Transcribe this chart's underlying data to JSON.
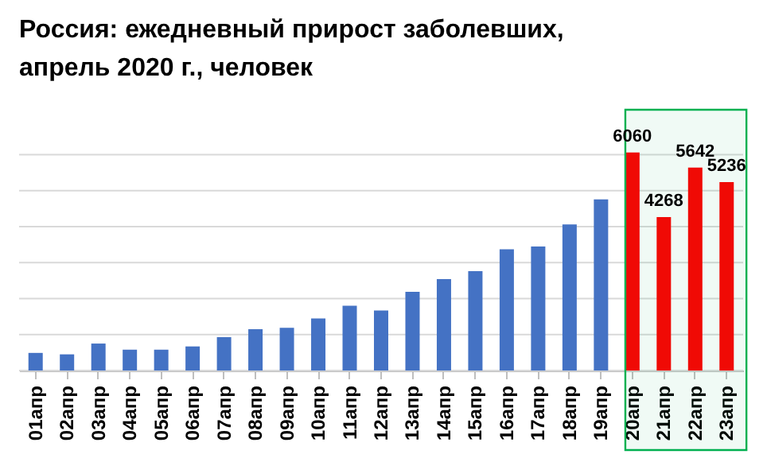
{
  "chart_data": {
    "type": "bar",
    "title": "Россия: ежедневный прирост заболевших,\nапрель 2020 г., человек",
    "categories": [
      "01апр",
      "02апр",
      "03апр",
      "04апр",
      "05апр",
      "06апр",
      "07апр",
      "08апр",
      "09апр",
      "10апр",
      "11апр",
      "12апр",
      "13апр",
      "14апр",
      "15апр",
      "16апр",
      "17апр",
      "18апр",
      "19апр",
      "20апр",
      "21апр",
      "22апр",
      "23апр"
    ],
    "values": [
      490,
      450,
      750,
      580,
      580,
      670,
      930,
      1150,
      1190,
      1450,
      1800,
      1670,
      2190,
      2540,
      2760,
      3370,
      3450,
      4060,
      4760,
      6060,
      4268,
      5642,
      5236
    ],
    "colors": [
      "#4472c4",
      "#4472c4",
      "#4472c4",
      "#4472c4",
      "#4472c4",
      "#4472c4",
      "#4472c4",
      "#4472c4",
      "#4472c4",
      "#4472c4",
      "#4472c4",
      "#4472c4",
      "#4472c4",
      "#4472c4",
      "#4472c4",
      "#4472c4",
      "#4472c4",
      "#4472c4",
      "#4472c4",
      "#ff0000",
      "#ff0000",
      "#ff0000",
      "#ff0000"
    ],
    "value_labels": [
      null,
      null,
      null,
      null,
      null,
      null,
      null,
      null,
      null,
      null,
      null,
      null,
      null,
      null,
      null,
      null,
      null,
      null,
      null,
      "6060",
      "4268",
      "5642",
      "5236"
    ],
    "ylim": [
      0,
      6100
    ],
    "yticks": [
      {
        "value": 0,
        "label": null
      },
      {
        "value": 1000,
        "label": null
      },
      {
        "value": 2000,
        "label": null
      },
      {
        "value": 3000,
        "label": null
      },
      {
        "value": 4000,
        "label": null
      },
      {
        "value": 5000,
        "label": null
      },
      {
        "value": 6000,
        "label": null
      }
    ],
    "grid": "y",
    "tick_labels": "x",
    "bands": [
      {
        "axis": "x",
        "from": "20апр",
        "to": "23апр",
        "color": "#00b050"
      }
    ]
  }
}
